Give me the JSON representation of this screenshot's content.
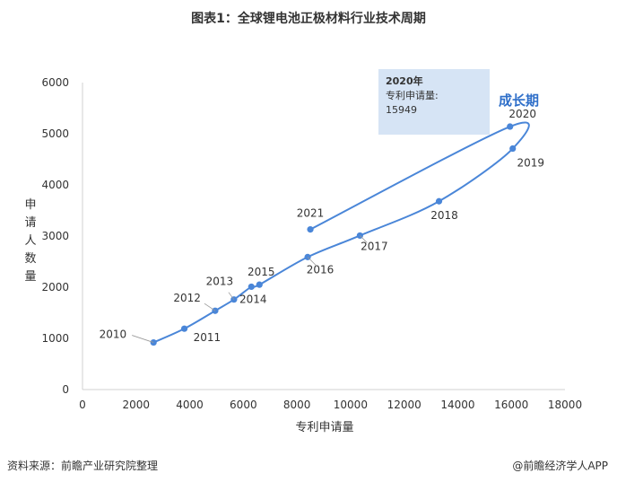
{
  "header": {
    "title": "图表1：全球锂电池正极材料行业技术周期"
  },
  "footer": {
    "source": "资料来源：前瞻产业研究院整理",
    "brand": "@前瞻经济学人APP"
  },
  "annotation": {
    "year": "2020年",
    "label": "专利申请量:",
    "value": "15949",
    "stage": "成长期"
  },
  "colors": {
    "series": "#4a86d8",
    "callout_bg": "#d6e4f5",
    "stage_text": "#2f6fc9"
  },
  "chart_data": {
    "type": "line",
    "title": "图表1：全球锂电池正极材料行业技术周期",
    "xlabel": "专利申请量",
    "ylabel": "申请人数量",
    "xlim": [
      0,
      18000
    ],
    "ylim": [
      0,
      6000
    ],
    "xticks": [
      "0",
      "2000",
      "4000",
      "6000",
      "8000",
      "10000",
      "12000",
      "14000",
      "16000",
      "18000"
    ],
    "yticks": [
      "0",
      "1000",
      "2000",
      "3000",
      "4000",
      "5000",
      "6000"
    ],
    "grid": false,
    "points": [
      {
        "year": "2010",
        "x": 2650,
        "y": 920
      },
      {
        "year": "2011",
        "x": 3800,
        "y": 1190
      },
      {
        "year": "2012",
        "x": 4950,
        "y": 1540
      },
      {
        "year": "2013",
        "x": 5650,
        "y": 1760
      },
      {
        "year": "2014",
        "x": 6300,
        "y": 2010
      },
      {
        "year": "2015",
        "x": 6600,
        "y": 2050
      },
      {
        "year": "2016",
        "x": 8400,
        "y": 2590
      },
      {
        "year": "2017",
        "x": 10350,
        "y": 3010
      },
      {
        "year": "2018",
        "x": 13300,
        "y": 3680
      },
      {
        "year": "2019",
        "x": 16050,
        "y": 4710
      },
      {
        "year": "2020",
        "x": 15949,
        "y": 5140
      },
      {
        "year": "2021",
        "x": 8500,
        "y": 3130
      }
    ]
  }
}
